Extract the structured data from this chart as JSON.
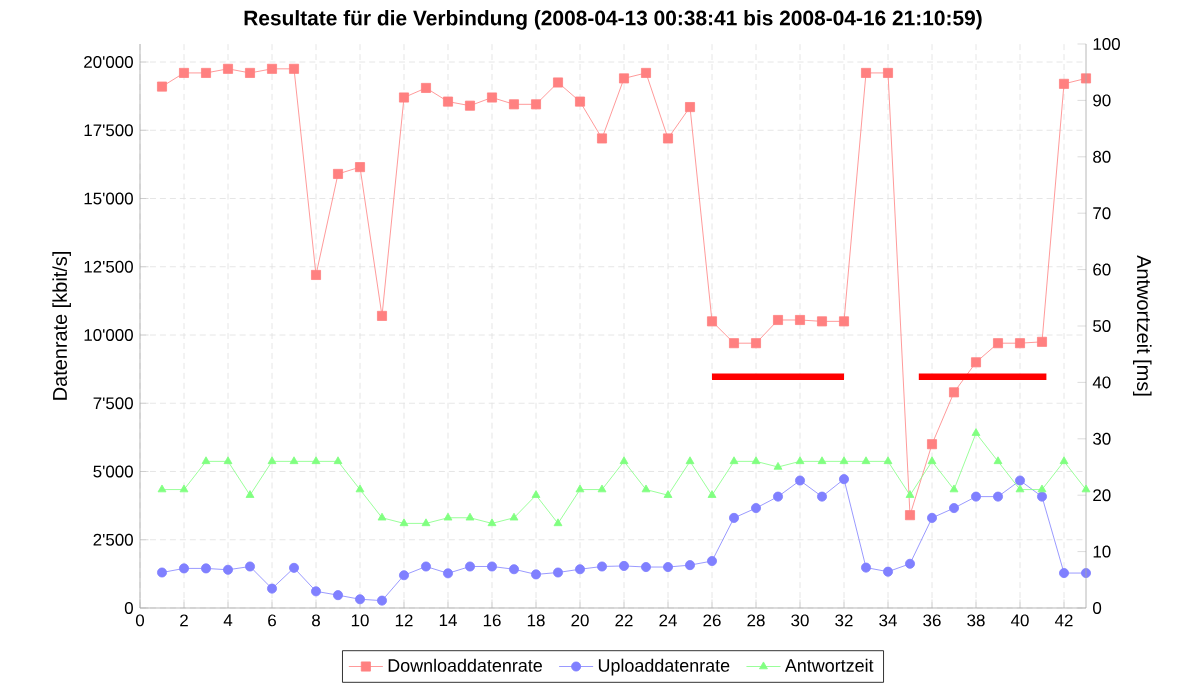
{
  "chart_data": {
    "type": "line",
    "title": "Resultate für die Verbindung (2008-04-13 00:38:41 bis 2008-04-16 21:10:59)",
    "xlabel": null,
    "ylabel": "Datenrate [kbit/s]",
    "y2label": "Antwortzeit [ms]",
    "x": [
      1,
      2,
      3,
      4,
      5,
      6,
      7,
      8,
      9,
      10,
      11,
      12,
      13,
      14,
      15,
      16,
      17,
      18,
      19,
      20,
      21,
      22,
      23,
      24,
      25,
      26,
      27,
      28,
      29,
      30,
      31,
      32,
      33,
      34,
      35,
      36,
      37,
      38,
      39,
      40,
      41,
      42,
      43
    ],
    "series": [
      {
        "name": "Downloaddatenrate",
        "color": "#ff8080",
        "marker": "square",
        "values": [
          19100,
          19600,
          19600,
          19750,
          19600,
          19750,
          19750,
          12200,
          15900,
          16150,
          10700,
          18700,
          19050,
          18550,
          18400,
          18700,
          18450,
          18450,
          19250,
          18550,
          17200,
          19400,
          19600,
          17200,
          18350,
          10500,
          9700,
          9700,
          10550,
          10550,
          10500,
          10500,
          19600,
          19600,
          3400,
          6000,
          7900,
          9000,
          9700,
          9700,
          9750,
          19200,
          19400
        ]
      },
      {
        "name": "Uploaddatenrate",
        "color": "#8080ff",
        "marker": "circle",
        "values": [
          1300,
          1450,
          1450,
          1400,
          1520,
          710,
          1470,
          610,
          470,
          320,
          270,
          1200,
          1520,
          1270,
          1520,
          1520,
          1420,
          1230,
          1300,
          1420,
          1520,
          1540,
          1500,
          1500,
          1570,
          1720,
          3300,
          3660,
          4080,
          4670,
          4080,
          4720,
          1480,
          1330,
          1620,
          3300,
          3660,
          4080,
          4080,
          4670,
          4080,
          1280,
          1280
        ]
      },
      {
        "name": "Antwortzeit",
        "color": "#80ff80",
        "marker": "triangle",
        "axis": "y2",
        "values": [
          21,
          21,
          26,
          26,
          20,
          26,
          26,
          26,
          26,
          21,
          16,
          15,
          15,
          16,
          16,
          15,
          16,
          20,
          15,
          21,
          21,
          26,
          21,
          20,
          26,
          20,
          26,
          26,
          25,
          26,
          26,
          26,
          26,
          26,
          20,
          26,
          21,
          31,
          26,
          21,
          21,
          26,
          21
        ]
      },
      {
        "color": "#ff0000",
        "marker": "none",
        "axis": "y2",
        "x": [
          26,
          32
        ],
        "values": [
          41,
          41
        ]
      },
      {
        "color": "#ff0000",
        "marker": "none",
        "axis": "y2",
        "x": [
          35.4,
          41.2
        ],
        "values": [
          41,
          41
        ]
      }
    ],
    "xlim": [
      0,
      43
    ],
    "xticks": [
      0,
      2,
      4,
      6,
      8,
      10,
      12,
      14,
      16,
      18,
      20,
      22,
      24,
      26,
      28,
      30,
      32,
      34,
      36,
      38,
      40,
      42
    ],
    "ylim": [
      0,
      20660
    ],
    "yticks": [
      0,
      {
        "value": 2500,
        "label": "2'500"
      },
      {
        "value": 5000,
        "label": "5'000"
      },
      {
        "value": 7500,
        "label": "7'500"
      },
      {
        "value": 10000,
        "label": "10'000"
      },
      {
        "value": 12500,
        "label": "12'500"
      },
      {
        "value": 15000,
        "label": "15'000"
      },
      {
        "value": 17500,
        "label": "17'500"
      },
      {
        "value": 20000,
        "label": "20'000"
      }
    ],
    "y2lim": [
      0,
      100
    ],
    "y2ticks": [
      0,
      10,
      20,
      30,
      40,
      50,
      60,
      70,
      80,
      90,
      100
    ],
    "grid": true,
    "legend": "bottom",
    "line_style": "solid"
  }
}
